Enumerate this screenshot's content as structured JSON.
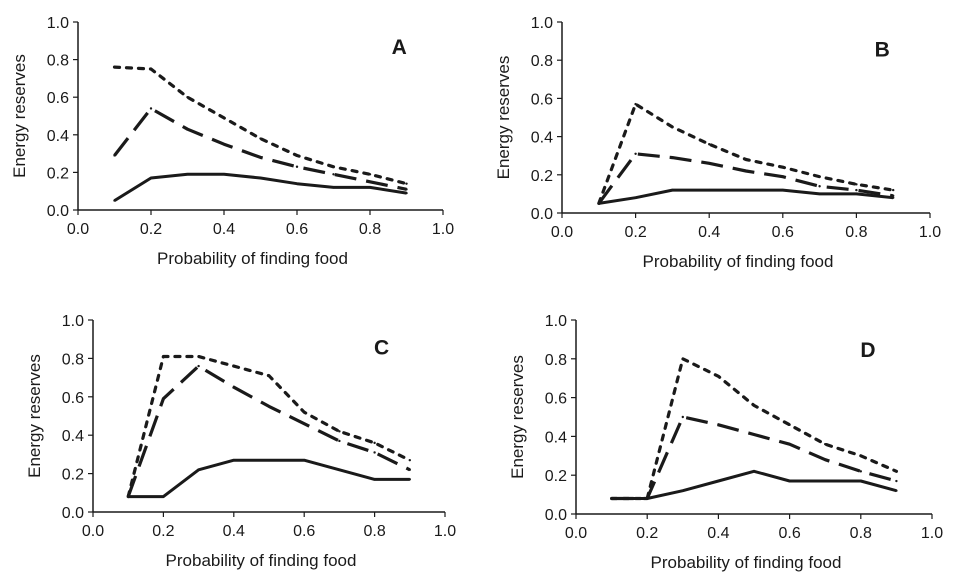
{
  "chart_data": [
    {
      "type": "line",
      "panel_label": "A",
      "xlabel": "Probability of finding food",
      "ylabel": "Energy reserves",
      "xlim": [
        0.0,
        1.0
      ],
      "ylim": [
        0.0,
        1.0
      ],
      "xticks": [
        "0.0",
        "0.2",
        "0.4",
        "0.6",
        "0.8",
        "1.0"
      ],
      "yticks": [
        "0.0",
        "0.2",
        "0.4",
        "0.6",
        "0.8",
        "1.0"
      ],
      "grid": false,
      "series": [
        {
          "style": "solid",
          "color": "#1a1a1a",
          "x": [
            0.1,
            0.2,
            0.3,
            0.4,
            0.5,
            0.6,
            0.7,
            0.8,
            0.9
          ],
          "y": [
            0.05,
            0.17,
            0.19,
            0.19,
            0.17,
            0.14,
            0.12,
            0.12,
            0.09
          ]
        },
        {
          "style": "dashed",
          "color": "#1a1a1a",
          "x": [
            0.1,
            0.2,
            0.3,
            0.4,
            0.5,
            0.6,
            0.7,
            0.8,
            0.9
          ],
          "y": [
            0.29,
            0.54,
            0.43,
            0.35,
            0.28,
            0.23,
            0.19,
            0.15,
            0.11
          ]
        },
        {
          "style": "dotted",
          "color": "#1a1a1a",
          "x": [
            0.1,
            0.2,
            0.3,
            0.4,
            0.5,
            0.6,
            0.7,
            0.8,
            0.9
          ],
          "y": [
            0.76,
            0.75,
            0.6,
            0.49,
            0.38,
            0.29,
            0.23,
            0.19,
            0.14
          ]
        }
      ]
    },
    {
      "type": "line",
      "panel_label": "B",
      "xlabel": "Probability of finding food",
      "ylabel": "Energy reserves",
      "xlim": [
        0.0,
        1.0
      ],
      "ylim": [
        0.0,
        1.0
      ],
      "xticks": [
        "0.0",
        "0.2",
        "0.4",
        "0.6",
        "0.8",
        "1.0"
      ],
      "yticks": [
        "0.0",
        "0.2",
        "0.4",
        "0.6",
        "0.8",
        "1.0"
      ],
      "grid": false,
      "series": [
        {
          "style": "solid",
          "color": "#1a1a1a",
          "x": [
            0.1,
            0.2,
            0.3,
            0.4,
            0.5,
            0.6,
            0.7,
            0.8,
            0.9
          ],
          "y": [
            0.05,
            0.08,
            0.12,
            0.12,
            0.12,
            0.12,
            0.1,
            0.1,
            0.08
          ]
        },
        {
          "style": "dashed",
          "color": "#1a1a1a",
          "x": [
            0.1,
            0.2,
            0.3,
            0.4,
            0.5,
            0.6,
            0.7,
            0.8,
            0.9
          ],
          "y": [
            0.05,
            0.31,
            0.29,
            0.26,
            0.22,
            0.19,
            0.14,
            0.12,
            0.09
          ]
        },
        {
          "style": "dotted",
          "color": "#1a1a1a",
          "x": [
            0.1,
            0.2,
            0.3,
            0.4,
            0.5,
            0.6,
            0.7,
            0.8,
            0.9
          ],
          "y": [
            0.05,
            0.57,
            0.45,
            0.36,
            0.28,
            0.24,
            0.19,
            0.15,
            0.12
          ]
        }
      ]
    },
    {
      "type": "line",
      "panel_label": "C",
      "xlabel": "Probability of finding food",
      "ylabel": "Energy reserves",
      "xlim": [
        0.0,
        1.0
      ],
      "ylim": [
        0.0,
        1.0
      ],
      "xticks": [
        "0.0",
        "0.2",
        "0.4",
        "0.6",
        "0.8",
        "1.0"
      ],
      "yticks": [
        "0.0",
        "0.2",
        "0.4",
        "0.6",
        "0.8",
        "1.0"
      ],
      "grid": false,
      "series": [
        {
          "style": "solid",
          "color": "#1a1a1a",
          "x": [
            0.1,
            0.2,
            0.3,
            0.4,
            0.5,
            0.6,
            0.7,
            0.8,
            0.9
          ],
          "y": [
            0.08,
            0.08,
            0.22,
            0.27,
            0.27,
            0.27,
            0.22,
            0.17,
            0.17
          ]
        },
        {
          "style": "dashed",
          "color": "#1a1a1a",
          "x": [
            0.1,
            0.2,
            0.3,
            0.4,
            0.5,
            0.6,
            0.7,
            0.8,
            0.9
          ],
          "y": [
            0.08,
            0.59,
            0.76,
            0.65,
            0.55,
            0.46,
            0.37,
            0.31,
            0.22
          ]
        },
        {
          "style": "dotted",
          "color": "#1a1a1a",
          "x": [
            0.1,
            0.2,
            0.3,
            0.4,
            0.5,
            0.6,
            0.7,
            0.8,
            0.9
          ],
          "y": [
            0.08,
            0.81,
            0.81,
            0.76,
            0.71,
            0.52,
            0.42,
            0.36,
            0.27
          ]
        }
      ]
    },
    {
      "type": "line",
      "panel_label": "D",
      "xlabel": "Probability of finding food",
      "ylabel": "Energy reserves",
      "xlim": [
        0.0,
        1.0
      ],
      "ylim": [
        0.0,
        1.0
      ],
      "xticks": [
        "0.0",
        "0.2",
        "0.4",
        "0.6",
        "0.8",
        "1.0"
      ],
      "yticks": [
        "0.0",
        "0.2",
        "0.4",
        "0.6",
        "0.8",
        "1.0"
      ],
      "grid": false,
      "series": [
        {
          "style": "solid",
          "color": "#1a1a1a",
          "x": [
            0.1,
            0.2,
            0.3,
            0.4,
            0.5,
            0.6,
            0.7,
            0.8,
            0.9
          ],
          "y": [
            0.08,
            0.08,
            0.12,
            0.17,
            0.22,
            0.17,
            0.17,
            0.17,
            0.12
          ]
        },
        {
          "style": "dashed",
          "color": "#1a1a1a",
          "x": [
            0.1,
            0.2,
            0.3,
            0.4,
            0.5,
            0.6,
            0.7,
            0.8,
            0.9
          ],
          "y": [
            0.08,
            0.08,
            0.5,
            0.46,
            0.41,
            0.36,
            0.28,
            0.22,
            0.17
          ]
        },
        {
          "style": "dotted",
          "color": "#1a1a1a",
          "x": [
            0.1,
            0.2,
            0.3,
            0.4,
            0.5,
            0.6,
            0.7,
            0.8,
            0.9
          ],
          "y": [
            0.08,
            0.08,
            0.8,
            0.71,
            0.56,
            0.46,
            0.36,
            0.3,
            0.22
          ]
        }
      ]
    }
  ]
}
